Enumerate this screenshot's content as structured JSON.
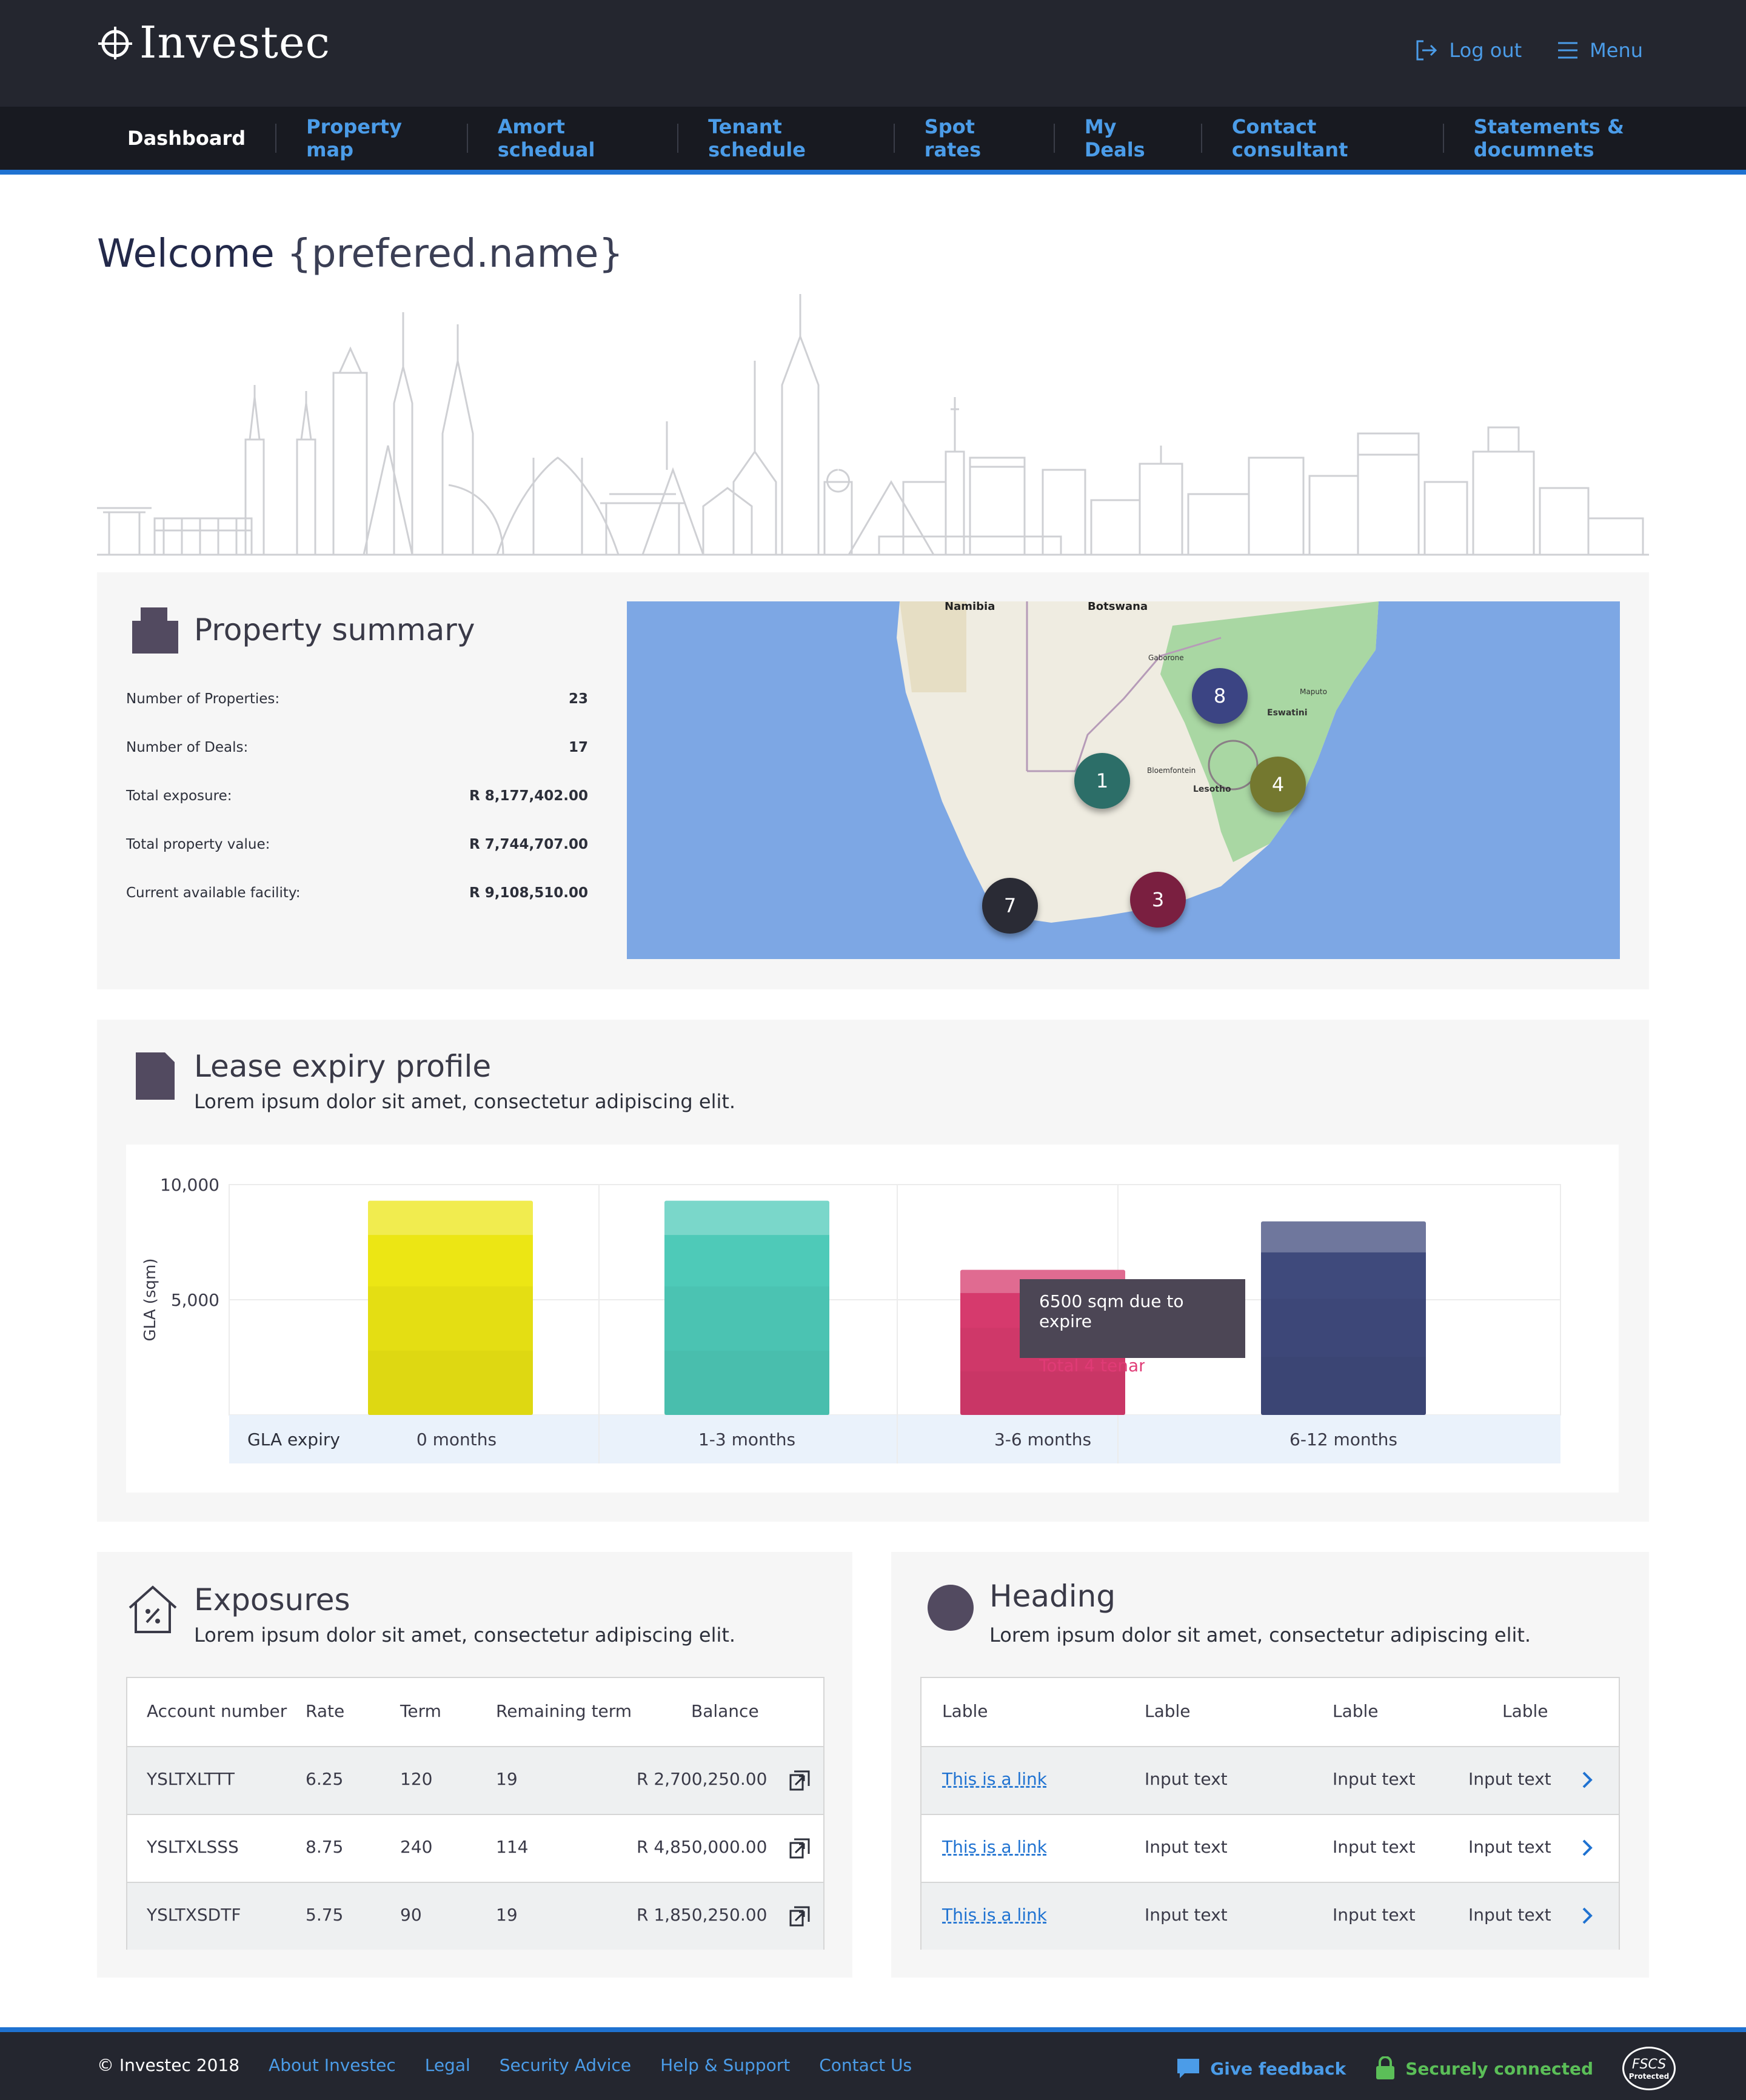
{
  "brand": {
    "name": "Investec"
  },
  "header": {
    "logout_label": "Log out",
    "menu_label": "Menu"
  },
  "nav": {
    "items": [
      "Dashboard",
      "Property map",
      "Amort schedual",
      "Tenant schedule",
      "Spot rates",
      "My Deals",
      "Contact consultant",
      "Statements & documnets"
    ],
    "active": "Dashboard"
  },
  "welcome": {
    "prefix": "Welcome",
    "name": "{prefered.name}"
  },
  "property_summary": {
    "title": "Property summary",
    "rows": [
      {
        "label": "Number of Properties:",
        "value": "23"
      },
      {
        "label": "Number of Deals:",
        "value": "17"
      },
      {
        "label": "Total exposure:",
        "value": "R 8,177,402.00"
      },
      {
        "label": "Total property value:",
        "value": "R 7,744,707.00"
      },
      {
        "label": "Current available facility:",
        "value": "R 9,108,510.00"
      }
    ],
    "map": {
      "labels": [
        "Namibia",
        "Botswana",
        "Gaborone",
        "Eswatini",
        "Lesotho",
        "Bloemfontein",
        "Maputo"
      ],
      "markers": [
        {
          "label": "8",
          "color": "#3b4483"
        },
        {
          "label": "1",
          "color": "#2c6e68"
        },
        {
          "label": "4",
          "color": "#74782f"
        },
        {
          "label": "3",
          "color": "#7a1f40"
        },
        {
          "label": "7",
          "color": "#2a2b35"
        }
      ]
    }
  },
  "lease_expiry": {
    "title": "Lease expiry profile",
    "subtitle": "Lorem ipsum dolor sit amet, consectetur adipiscing elit.",
    "tooltip": {
      "line1": "6500 sqm due to expire",
      "line2": "Total 4 tenants"
    },
    "row_label": "GLA expiry"
  },
  "chart_data": {
    "type": "bar",
    "categories": [
      "0 months",
      "1-3 months",
      "3-6 months",
      "6-12 months"
    ],
    "values": [
      9300,
      9300,
      6300,
      8400
    ],
    "colors": [
      "#ece614",
      "#4ecab8",
      "#d63a6d",
      "#3f4a7c"
    ],
    "ylabel": "GLA (sqm)",
    "yticks": [
      5000,
      10000
    ],
    "ytick_labels": [
      "5,000",
      "10,000"
    ],
    "ylim": [
      0,
      10000
    ]
  },
  "exposures": {
    "title": "Exposures",
    "subtitle": "Lorem ipsum dolor sit amet, consectetur adipiscing elit.",
    "columns": [
      "Account number",
      "Rate",
      "Term",
      "Remaining term",
      "Balance"
    ],
    "rows": [
      {
        "account": "YSLTXLTTT",
        "rate": "6.25",
        "term": "120",
        "remaining": "19",
        "balance": "R 2,700,250.00"
      },
      {
        "account": "YSLTXLSSS",
        "rate": "8.75",
        "term": "240",
        "remaining": "114",
        "balance": "R 4,850,000.00"
      },
      {
        "account": "YSLTXSDTF",
        "rate": "5.75",
        "term": "90",
        "remaining": "19",
        "balance": "R 1,850,250.00"
      }
    ]
  },
  "heading_card": {
    "title": "Heading",
    "subtitle": "Lorem ipsum dolor sit amet, consectetur adipiscing elit.",
    "columns": [
      "Lable",
      "Lable",
      "Lable",
      "Lable"
    ],
    "rows": [
      {
        "link": "This is a link",
        "c1": "Input text",
        "c2": "Input text",
        "c3": "Input text"
      },
      {
        "link": "This is a link",
        "c1": "Input text",
        "c2": "Input text",
        "c3": "Input text"
      },
      {
        "link": "This is a link",
        "c1": "Input text",
        "c2": "Input text",
        "c3": "Input text"
      }
    ]
  },
  "footer": {
    "copyright": "© Investec 2018",
    "links": [
      "About Investec",
      "Legal",
      "Security Advice",
      "Help & Support",
      "Contact Us"
    ],
    "feedback_label": "Give feedback",
    "secure_label": "Securely connected",
    "fscs_text": "FSCS",
    "fscs_sub": "Protected"
  }
}
